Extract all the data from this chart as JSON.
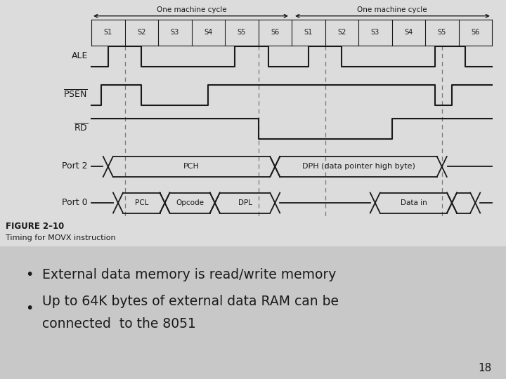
{
  "bg_color": "#c8c8c8",
  "diagram_bg": "#dcdcdc",
  "title": "FIGURE 2–10",
  "subtitle": "Timing for MOVX instruction",
  "bullet1": "External data memory is read/write memory",
  "bullet2_line1": "Up to 64K bytes of external data RAM can be",
  "bullet2_line2": "connected  to the 8051",
  "page_num": "18",
  "cycle_labels": [
    "One machine cycle",
    "One machine cycle"
  ],
  "states": [
    "S1",
    "S2",
    "S3",
    "S4",
    "S5",
    "S6",
    "S1",
    "S2",
    "S3",
    "S4",
    "S5",
    "S6"
  ],
  "line_color": "#1a1a1a",
  "dashed_color": "#777777",
  "text_color": "#1a1a1a"
}
